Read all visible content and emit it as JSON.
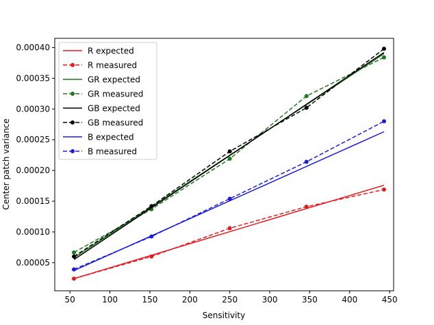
{
  "chart_data": {
    "type": "line",
    "title": "",
    "xlabel": "Sensitivity",
    "ylabel": "Center patch variance",
    "xlim": [
      31,
      455
    ],
    "ylim": [
      4.2e-06,
      0.000415
    ],
    "xticks": [
      50,
      100,
      150,
      200,
      250,
      300,
      350,
      400,
      450
    ],
    "yticks": [
      5e-05,
      0.0001,
      0.00015,
      0.0002,
      0.00025,
      0.0003,
      0.00035,
      0.0004
    ],
    "ytick_labels": [
      "0.00005",
      "0.00010",
      "0.00015",
      "0.00020",
      "0.00025",
      "0.00030",
      "0.00035",
      "0.00040"
    ],
    "grid": false,
    "legend_placement": "upper-left",
    "x": [
      55,
      152,
      250,
      346,
      443
    ],
    "series": [
      {
        "name": "R expected",
        "color": "#e41a1c",
        "style": "solid",
        "x": [
          55,
          443
        ],
        "values": [
          2.4e-05,
          0.000176
        ]
      },
      {
        "name": "R measured",
        "color": "#e41a1c",
        "style": "dashed-marker",
        "values": [
          2.4e-05,
          6e-05,
          0.000106,
          0.000141,
          0.000169
        ]
      },
      {
        "name": "GR expected",
        "color": "#1a7a1a",
        "style": "solid",
        "x": [
          55,
          443
        ],
        "values": [
          5.8e-05,
          0.00039
        ]
      },
      {
        "name": "GR measured",
        "color": "#1a7a1a",
        "style": "dashed-marker",
        "values": [
          6.65e-05,
          0.000137,
          0.000219,
          0.000321,
          0.000384
        ]
      },
      {
        "name": "GB expected",
        "color": "#000000",
        "style": "solid",
        "x": [
          55,
          443
        ],
        "values": [
          5.5e-05,
          0.000392
        ]
      },
      {
        "name": "GB measured",
        "color": "#000000",
        "style": "dashed-marker",
        "values": [
          6e-05,
          0.000142,
          0.000231,
          0.000302,
          0.000398
        ]
      },
      {
        "name": "B expected",
        "color": "#1a1ae0",
        "style": "solid",
        "x": [
          55,
          443
        ],
        "values": [
          3.7e-05,
          0.000263
        ]
      },
      {
        "name": "B measured",
        "color": "#1a1ae0",
        "style": "dashed-marker",
        "values": [
          3.9e-05,
          9.25e-05,
          0.000154,
          0.000214,
          0.00028
        ]
      }
    ]
  }
}
